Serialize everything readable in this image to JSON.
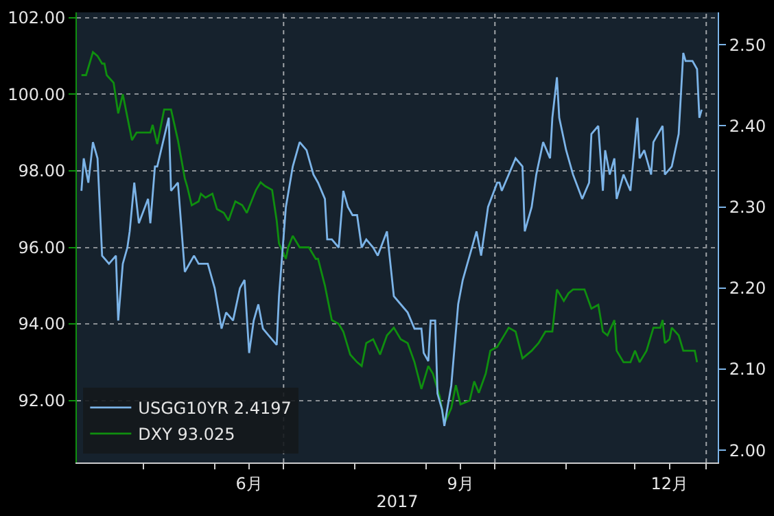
{
  "chart_data": {
    "type": "line",
    "xlabel": "2017",
    "xlim": [
      "2017-04-02",
      "2018-01-06"
    ],
    "xticks": [
      {
        "value": "2017-05-01",
        "label": null
      },
      {
        "value": "2017-06-01",
        "label": null
      },
      {
        "value": "2017-06-16",
        "label": "6月"
      },
      {
        "value": "2017-07-01",
        "label": null
      },
      {
        "value": "2017-08-01",
        "label": null
      },
      {
        "value": "2017-09-01",
        "label": null
      },
      {
        "value": "2017-09-16",
        "label": "9月"
      },
      {
        "value": "2017-10-01",
        "label": null
      },
      {
        "value": "2017-11-01",
        "label": null
      },
      {
        "value": "2017-12-01",
        "label": null
      },
      {
        "value": "2017-12-16",
        "label": "12月"
      },
      {
        "value": "2018-01-01",
        "label": null
      }
    ],
    "ylim": [
      90.38,
      102.14
    ],
    "yticks": [
      {
        "value": 92,
        "label": "92.00"
      },
      {
        "value": 94,
        "label": "94.00"
      },
      {
        "value": 96,
        "label": "96.00"
      },
      {
        "value": 98,
        "label": "98.00"
      },
      {
        "value": 100,
        "label": "100.00"
      },
      {
        "value": 102,
        "label": "102.00"
      }
    ],
    "y2lim": [
      1.985,
      2.54
    ],
    "y2ticks": [
      {
        "value": 2.0,
        "label": "2.00"
      },
      {
        "value": 2.1,
        "label": "2.10"
      },
      {
        "value": 2.2,
        "label": "2.20"
      },
      {
        "value": 2.3,
        "label": "2.30"
      },
      {
        "value": 2.4,
        "label": "2.40"
      },
      {
        "value": 2.5,
        "label": "2.50"
      }
    ],
    "grid": "y",
    "legend": "bottom left",
    "ref_lines": [
      {
        "axis": "x",
        "value": "2017-07-01",
        "color": "#a0a4a8",
        "line_style": "dotted"
      },
      {
        "axis": "x",
        "value": "2017-10-01",
        "color": "#a0a4a8",
        "line_style": "dotted"
      },
      {
        "axis": "x",
        "value": "2018-01-01",
        "color": "#a0a4a8",
        "line_style": "dotted"
      }
    ],
    "series": [
      {
        "name": "USGG10YR 2.4197",
        "color": "#7cb4e8",
        "axis": "y2",
        "x": [
          "2017-04-04",
          "2017-04-05",
          "2017-04-07",
          "2017-04-09",
          "2017-04-11",
          "2017-04-13",
          "2017-04-16",
          "2017-04-19",
          "2017-04-20",
          "2017-04-22",
          "2017-04-24",
          "2017-04-25",
          "2017-04-27",
          "2017-04-29",
          "2017-05-03",
          "2017-05-04",
          "2017-05-06",
          "2017-05-07",
          "2017-05-12",
          "2017-05-13",
          "2017-05-16",
          "2017-05-19",
          "2017-05-23",
          "2017-05-25",
          "2017-05-29",
          "2017-06-01",
          "2017-06-04",
          "2017-06-06",
          "2017-06-09",
          "2017-06-12",
          "2017-06-14",
          "2017-06-16",
          "2017-06-18",
          "2017-06-20",
          "2017-06-22",
          "2017-06-25",
          "2017-06-28",
          "2017-06-29",
          "2017-07-02",
          "2017-07-05",
          "2017-07-08",
          "2017-07-11",
          "2017-07-12",
          "2017-07-14",
          "2017-07-16",
          "2017-07-19",
          "2017-07-20",
          "2017-07-22",
          "2017-07-25",
          "2017-07-27",
          "2017-07-29",
          "2017-07-31",
          "2017-08-02",
          "2017-08-04",
          "2017-08-06",
          "2017-08-09",
          "2017-08-11",
          "2017-08-15",
          "2017-08-18",
          "2017-08-21",
          "2017-08-24",
          "2017-08-27",
          "2017-08-30",
          "2017-08-31",
          "2017-09-02",
          "2017-09-03",
          "2017-09-05",
          "2017-09-06",
          "2017-09-08",
          "2017-09-09",
          "2017-09-12",
          "2017-09-15",
          "2017-09-17",
          "2017-09-19",
          "2017-09-21",
          "2017-09-23",
          "2017-09-25",
          "2017-09-28",
          "2017-10-02",
          "2017-10-03",
          "2017-10-04",
          "2017-10-07",
          "2017-10-10",
          "2017-10-13",
          "2017-10-14",
          "2017-10-17",
          "2017-10-19",
          "2017-10-22",
          "2017-10-25",
          "2017-10-26",
          "2017-10-28",
          "2017-10-29",
          "2017-11-01",
          "2017-11-04",
          "2017-11-08",
          "2017-11-11",
          "2017-11-12",
          "2017-11-15",
          "2017-11-17",
          "2017-11-18",
          "2017-11-20",
          "2017-11-22",
          "2017-11-23",
          "2017-11-26",
          "2017-11-29",
          "2017-12-02",
          "2017-12-03",
          "2017-12-05",
          "2017-12-08",
          "2017-12-09",
          "2017-12-13",
          "2017-12-14",
          "2017-12-17",
          "2017-12-20",
          "2017-12-22",
          "2017-12-23",
          "2017-12-26",
          "2017-12-28",
          "2017-12-29",
          "2017-12-30"
        ],
        "values": [
          2.32,
          2.36,
          2.33,
          2.38,
          2.36,
          2.24,
          2.23,
          2.24,
          2.16,
          2.23,
          2.25,
          2.27,
          2.33,
          2.28,
          2.31,
          2.28,
          2.35,
          2.35,
          2.41,
          2.32,
          2.33,
          2.22,
          2.24,
          2.23,
          2.23,
          2.2,
          2.15,
          2.17,
          2.16,
          2.2,
          2.21,
          2.12,
          2.16,
          2.18,
          2.15,
          2.14,
          2.13,
          2.19,
          2.3,
          2.35,
          2.38,
          2.37,
          2.36,
          2.34,
          2.33,
          2.31,
          2.26,
          2.26,
          2.25,
          2.32,
          2.3,
          2.29,
          2.29,
          2.25,
          2.26,
          2.25,
          2.24,
          2.27,
          2.19,
          2.18,
          2.17,
          2.15,
          2.15,
          2.12,
          2.11,
          2.16,
          2.16,
          2.07,
          2.05,
          2.03,
          2.08,
          2.18,
          2.21,
          2.23,
          2.25,
          2.27,
          2.24,
          2.3,
          2.33,
          2.33,
          2.32,
          2.34,
          2.36,
          2.35,
          2.27,
          2.3,
          2.34,
          2.38,
          2.36,
          2.41,
          2.46,
          2.41,
          2.37,
          2.34,
          2.31,
          2.33,
          2.39,
          2.4,
          2.32,
          2.37,
          2.34,
          2.36,
          2.31,
          2.34,
          2.32,
          2.41,
          2.36,
          2.37,
          2.34,
          2.38,
          2.4,
          2.34,
          2.35,
          2.39,
          2.49,
          2.48,
          2.48,
          2.47,
          2.41,
          2.42
        ]
      },
      {
        "name": "DXY 93.025",
        "color": "#0f8f0f",
        "x": [
          "2017-04-04",
          "2017-04-06",
          "2017-04-09",
          "2017-04-11",
          "2017-04-13",
          "2017-04-14",
          "2017-04-15",
          "2017-04-18",
          "2017-04-20",
          "2017-04-22",
          "2017-04-26",
          "2017-04-28",
          "2017-05-04",
          "2017-05-05",
          "2017-05-07",
          "2017-05-10",
          "2017-05-13",
          "2017-05-16",
          "2017-05-19",
          "2017-05-20",
          "2017-05-22",
          "2017-05-25",
          "2017-05-26",
          "2017-05-28",
          "2017-05-31",
          "2017-06-02",
          "2017-06-05",
          "2017-06-07",
          "2017-06-10",
          "2017-06-13",
          "2017-06-15",
          "2017-06-17",
          "2017-06-19",
          "2017-06-21",
          "2017-06-23",
          "2017-06-26",
          "2017-06-28",
          "2017-06-29",
          "2017-07-02",
          "2017-07-03",
          "2017-07-05",
          "2017-07-08",
          "2017-07-09",
          "2017-07-12",
          "2017-07-15",
          "2017-07-16",
          "2017-07-19",
          "2017-07-22",
          "2017-07-25",
          "2017-07-27",
          "2017-07-30",
          "2017-08-02",
          "2017-08-04",
          "2017-08-06",
          "2017-08-09",
          "2017-08-12",
          "2017-08-15",
          "2017-08-18",
          "2017-08-21",
          "2017-08-24",
          "2017-08-27",
          "2017-08-30",
          "2017-09-02",
          "2017-09-04",
          "2017-09-07",
          "2017-09-09",
          "2017-09-12",
          "2017-09-14",
          "2017-09-16",
          "2017-09-20",
          "2017-09-22",
          "2017-09-24",
          "2017-09-27",
          "2017-09-29",
          "2017-10-02",
          "2017-10-04",
          "2017-10-07",
          "2017-10-10",
          "2017-10-13",
          "2017-10-17",
          "2017-10-20",
          "2017-10-23",
          "2017-10-26",
          "2017-10-28",
          "2017-10-31",
          "2017-11-02",
          "2017-11-04",
          "2017-11-06",
          "2017-11-09",
          "2017-11-12",
          "2017-11-15",
          "2017-11-17",
          "2017-11-19",
          "2017-11-22",
          "2017-11-23",
          "2017-11-26",
          "2017-11-29",
          "2017-12-01",
          "2017-12-03",
          "2017-12-06",
          "2017-12-09",
          "2017-12-12",
          "2017-12-13",
          "2017-12-14",
          "2017-12-16",
          "2017-12-17",
          "2017-12-20",
          "2017-12-22",
          "2017-12-25",
          "2017-12-27",
          "2017-12-28"
        ],
        "values": [
          100.5,
          100.5,
          101.1,
          101.0,
          100.8,
          100.8,
          100.5,
          100.3,
          99.5,
          100.0,
          98.8,
          99.0,
          99.0,
          99.2,
          98.7,
          99.6,
          99.6,
          98.8,
          97.8,
          97.6,
          97.1,
          97.2,
          97.4,
          97.3,
          97.4,
          97.0,
          96.9,
          96.7,
          97.2,
          97.1,
          96.9,
          97.2,
          97.5,
          97.7,
          97.6,
          97.5,
          96.7,
          96.1,
          95.7,
          96.0,
          96.3,
          96.0,
          96.0,
          96.0,
          95.7,
          95.7,
          95.0,
          94.1,
          94.0,
          93.8,
          93.2,
          93.0,
          92.9,
          93.5,
          93.6,
          93.2,
          93.7,
          93.9,
          93.6,
          93.5,
          93.0,
          92.3,
          92.9,
          92.7,
          92.1,
          91.4,
          91.8,
          92.4,
          91.9,
          92.0,
          92.5,
          92.2,
          92.7,
          93.3,
          93.4,
          93.6,
          93.9,
          93.8,
          93.1,
          93.3,
          93.5,
          93.8,
          93.8,
          94.9,
          94.6,
          94.8,
          94.9,
          94.9,
          94.9,
          94.4,
          94.5,
          93.8,
          93.7,
          94.1,
          93.3,
          93.0,
          93.0,
          93.3,
          93.0,
          93.3,
          93.9,
          93.9,
          94.1,
          93.5,
          93.6,
          93.9,
          93.7,
          93.3,
          93.3,
          93.3,
          93.0
        ]
      }
    ]
  }
}
